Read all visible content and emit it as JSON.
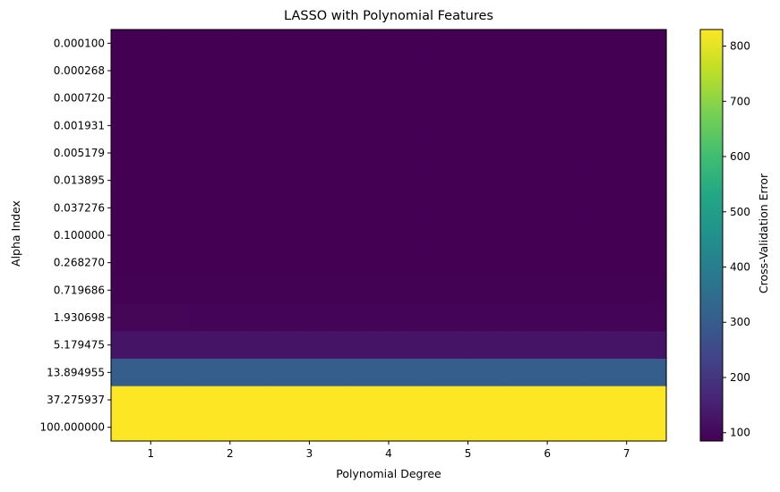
{
  "chart_data": {
    "type": "heatmap",
    "title": "LASSO with Polynomial Features",
    "xlabel": "Polynomial Degree",
    "ylabel": "Alpha Index",
    "x_categories": [
      "1",
      "2",
      "3",
      "4",
      "5",
      "6",
      "7"
    ],
    "y_categories": [
      "0.000100",
      "0.000268",
      "0.000720",
      "0.001931",
      "0.005179",
      "0.013895",
      "0.037276",
      "0.100000",
      "0.268270",
      "0.719686",
      "1.930698",
      "5.179475",
      "13.894955",
      "37.275937",
      "100.000000"
    ],
    "values": [
      [
        85,
        85,
        85,
        85,
        85,
        85,
        85
      ],
      [
        85,
        85,
        85,
        85,
        85,
        85,
        85
      ],
      [
        85,
        85,
        85,
        85,
        85,
        85,
        85
      ],
      [
        85,
        85,
        85,
        85,
        85,
        85,
        85
      ],
      [
        85,
        85,
        85,
        85,
        85,
        85,
        85
      ],
      [
        85,
        85,
        85,
        85,
        85,
        85,
        85
      ],
      [
        85,
        85,
        85,
        85,
        85,
        85,
        85
      ],
      [
        85,
        85,
        85,
        85,
        85,
        85,
        85
      ],
      [
        86,
        86,
        86,
        86,
        86,
        86,
        86
      ],
      [
        88,
        88,
        88,
        88,
        88,
        88,
        88
      ],
      [
        95,
        93,
        93,
        93,
        93,
        93,
        93
      ],
      [
        125,
        125,
        125,
        125,
        125,
        125,
        125
      ],
      [
        305,
        305,
        305,
        305,
        305,
        305,
        305
      ],
      [
        830,
        830,
        830,
        830,
        830,
        830,
        830
      ],
      [
        830,
        830,
        830,
        830,
        830,
        830,
        830
      ]
    ],
    "colorscale": "viridis",
    "colorbar": {
      "label": "Cross-Validation Error",
      "range": [
        85,
        830
      ],
      "ticks": [
        100,
        200,
        300,
        400,
        500,
        600,
        700,
        800
      ]
    },
    "grid": false
  }
}
